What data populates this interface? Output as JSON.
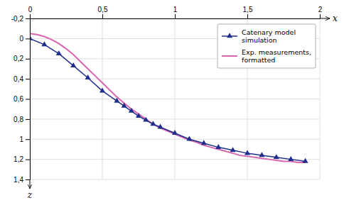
{
  "chart_data": {
    "type": "line",
    "x_label": "x",
    "y_label": "z",
    "series": [
      {
        "name": "Catenary model\nsimulation",
        "color": "#1f2e8c",
        "marker": "triangle",
        "x": [
          0.0,
          0.1,
          0.2,
          0.3,
          0.4,
          0.5,
          0.6,
          0.65,
          0.7,
          0.75,
          0.8,
          0.85,
          0.9,
          1.0,
          1.1,
          1.2,
          1.3,
          1.4,
          1.5,
          1.6,
          1.7,
          1.8,
          1.9
        ],
        "values": [
          0.0,
          0.06,
          0.15,
          0.27,
          0.39,
          0.52,
          0.62,
          0.67,
          0.72,
          0.77,
          0.81,
          0.85,
          0.88,
          0.94,
          1.0,
          1.04,
          1.08,
          1.11,
          1.14,
          1.16,
          1.18,
          1.2,
          1.22
        ]
      },
      {
        "name": "Exp. measurements,\nformatted",
        "color": "#d966b0",
        "x": [
          0.0,
          0.05,
          0.1,
          0.15,
          0.2,
          0.25,
          0.3,
          0.35,
          0.4,
          0.45,
          0.5,
          0.55,
          0.6,
          0.65,
          0.7,
          0.75,
          0.8,
          0.85,
          0.9,
          0.95,
          1.0,
          1.05,
          1.1,
          1.15,
          1.2,
          1.25,
          1.3,
          1.35,
          1.4,
          1.45,
          1.5,
          1.55,
          1.6,
          1.65,
          1.7,
          1.75,
          1.8,
          1.85,
          1.9
        ],
        "values": [
          -0.05,
          -0.04,
          -0.02,
          0.01,
          0.05,
          0.1,
          0.16,
          0.23,
          0.3,
          0.37,
          0.44,
          0.51,
          0.58,
          0.64,
          0.7,
          0.75,
          0.8,
          0.85,
          0.89,
          0.92,
          0.95,
          0.98,
          1.01,
          1.03,
          1.06,
          1.08,
          1.1,
          1.12,
          1.14,
          1.16,
          1.17,
          1.18,
          1.19,
          1.2,
          1.21,
          1.22,
          1.22,
          1.23,
          1.23
        ]
      }
    ],
    "xlim": [
      0,
      2
    ],
    "xticks": [
      0,
      {
        "value": 0.5,
        "label": "0,5"
      },
      1,
      {
        "value": 1.5,
        "label": "1,5"
      },
      2
    ],
    "ylim": [
      1.4,
      -0.2
    ],
    "yticks": [
      {
        "value": -0.2,
        "label": "-0,2"
      },
      0,
      {
        "value": 0.2,
        "label": "0,2"
      },
      {
        "value": 0.4,
        "label": "0,4"
      },
      {
        "value": 0.6,
        "label": "0,6"
      },
      {
        "value": 0.8,
        "label": "0,8"
      },
      1,
      {
        "value": 1.2,
        "label": "1,2"
      },
      {
        "value": 1.4,
        "label": "1,4"
      }
    ],
    "grid": true,
    "legend": "upper right"
  }
}
